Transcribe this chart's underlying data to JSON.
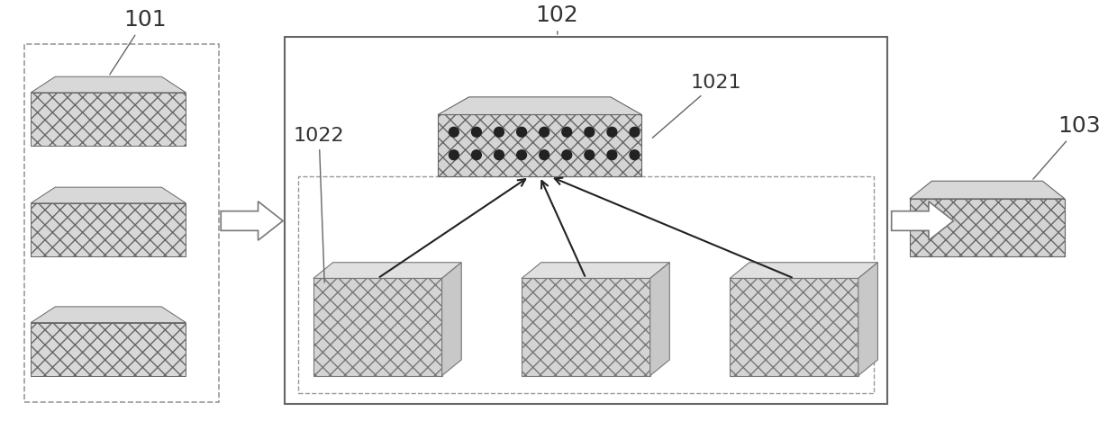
{
  "bg_color": "#ffffff",
  "label_101": "101",
  "label_102": "102",
  "label_103": "103",
  "label_1021": "1021",
  "label_1022": "1022",
  "text_color": "#333333",
  "edge_color": "#666666",
  "hatch_pattern": "xxx",
  "face_color_light": "#e0e0e0",
  "face_color_mid": "#d0d0d0",
  "face_color_dark": "#c0c0c0",
  "dot_color": "#222222",
  "arrow_color": "#444444",
  "dashed_color": "#888888"
}
